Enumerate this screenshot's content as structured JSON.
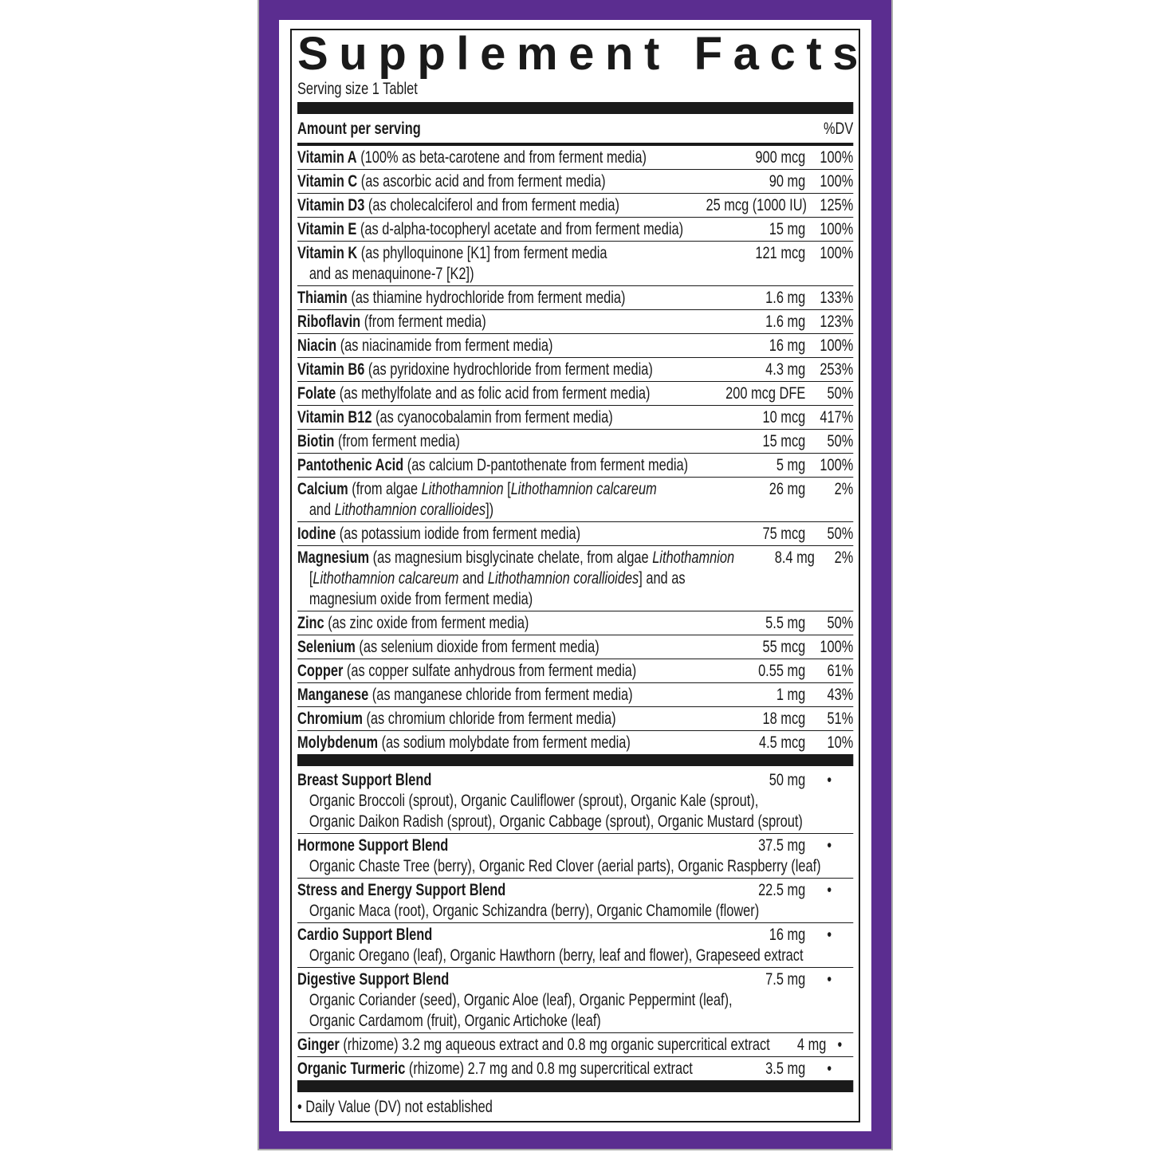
{
  "title": "Supplement Facts",
  "serving_size": "Serving size 1 Tablet",
  "amount_header": "Amount per serving",
  "dv_header": "%DV",
  "colors": {
    "frame": "#5b2d90",
    "ink": "#1a1a1a"
  },
  "nutrients": [
    {
      "name": "Vitamin A",
      "lines": [
        [
          "(100% as beta-carotene and from ferment media)"
        ]
      ],
      "amount": "900 mcg",
      "dv": "100%"
    },
    {
      "name": "Vitamin C",
      "lines": [
        [
          "(as ascorbic acid and from ferment media)"
        ]
      ],
      "amount": "90 mg",
      "dv": "100%"
    },
    {
      "name": "Vitamin D3",
      "lines": [
        [
          "(as cholecalciferol and from ferment media)"
        ]
      ],
      "amount": "25 mcg (1000 IU)",
      "dv": "125%"
    },
    {
      "name": "Vitamin E",
      "lines": [
        [
          "(as d-alpha-tocopheryl acetate and from ferment media)"
        ]
      ],
      "amount": "15 mg",
      "dv": "100%"
    },
    {
      "name": "Vitamin K",
      "lines": [
        [
          "(as phylloquinone [K1] from ferment media"
        ],
        [
          "and as menaquinone-7 [K2])"
        ]
      ],
      "amount": "121 mcg",
      "dv": "100%"
    },
    {
      "name": "Thiamin",
      "lines": [
        [
          "(as thiamine hydrochloride from ferment media)"
        ]
      ],
      "amount": "1.6 mg",
      "dv": "133%"
    },
    {
      "name": "Riboflavin",
      "lines": [
        [
          "(from ferment media)"
        ]
      ],
      "amount": "1.6 mg",
      "dv": "123%"
    },
    {
      "name": "Niacin",
      "lines": [
        [
          "(as niacinamide from ferment media)"
        ]
      ],
      "amount": "16 mg",
      "dv": "100%"
    },
    {
      "name": "Vitamin B6",
      "lines": [
        [
          "(as pyridoxine hydrochloride from ferment media)"
        ]
      ],
      "amount": "4.3 mg",
      "dv": "253%"
    },
    {
      "name": "Folate",
      "lines": [
        [
          "(as methylfolate and as folic acid from ferment media)"
        ]
      ],
      "amount": "200 mcg DFE",
      "dv": "50%"
    },
    {
      "name": "Vitamin B12",
      "lines": [
        [
          "(as cyanocobalamin from ferment media)"
        ]
      ],
      "amount": "10 mcg",
      "dv": "417%"
    },
    {
      "name": "Biotin",
      "lines": [
        [
          "(from ferment media)"
        ]
      ],
      "amount": "15 mcg",
      "dv": "50%"
    },
    {
      "name": "Pantothenic Acid",
      "lines": [
        [
          "(as calcium D-pantothenate from ferment media)"
        ]
      ],
      "amount": "5 mg",
      "dv": "100%"
    },
    {
      "name": "Calcium",
      "lines": [
        [
          "(from algae ",
          {
            "i": "Lithothamnion"
          },
          " [",
          {
            "i": "Lithothamnion calcareum"
          }
        ],
        [
          "and ",
          {
            "i": "Lithothamnion corallioides"
          },
          "])"
        ]
      ],
      "amount": "26 mg",
      "dv": "2%"
    },
    {
      "name": "Iodine",
      "lines": [
        [
          "(as potassium iodide from ferment media)"
        ]
      ],
      "amount": "75 mcg",
      "dv": "50%"
    },
    {
      "name": "Magnesium",
      "lines": [
        [
          "(as magnesium bisglycinate chelate, from algae ",
          {
            "i": "Lithothamnion"
          }
        ],
        [
          "[",
          {
            "i": "Lithothamnion calcareum"
          },
          " and ",
          {
            "i": "Lithothamnion corallioides"
          },
          "] and as"
        ],
        [
          "magnesium oxide from ferment media)"
        ]
      ],
      "amount": "8.4 mg",
      "dv": "2%"
    },
    {
      "name": "Zinc",
      "lines": [
        [
          "(as zinc oxide from ferment media)"
        ]
      ],
      "amount": "5.5 mg",
      "dv": "50%"
    },
    {
      "name": "Selenium",
      "lines": [
        [
          "(as selenium dioxide from ferment media)"
        ]
      ],
      "amount": "55 mcg",
      "dv": "100%"
    },
    {
      "name": "Copper",
      "lines": [
        [
          "(as copper sulfate anhydrous from ferment media)"
        ]
      ],
      "amount": "0.55 mg",
      "dv": "61%"
    },
    {
      "name": "Manganese",
      "lines": [
        [
          "(as manganese chloride from ferment media)"
        ]
      ],
      "amount": "1 mg",
      "dv": "43%"
    },
    {
      "name": "Chromium",
      "lines": [
        [
          "(as chromium chloride from ferment media)"
        ]
      ],
      "amount": "18 mcg",
      "dv": "51%"
    },
    {
      "name": "Molybdenum",
      "lines": [
        [
          "(as sodium molybdate from ferment media)"
        ]
      ],
      "amount": "4.5 mcg",
      "dv": "10%"
    }
  ],
  "blends": [
    {
      "name": "Breast Support Blend",
      "desc": "",
      "amount": "50 mg",
      "dv": "•",
      "ingredients": [
        "Organic Broccoli (sprout), Organic Cauliflower (sprout), Organic Kale (sprout),",
        "Organic Daikon Radish (sprout), Organic Cabbage (sprout), Organic Mustard (sprout)"
      ]
    },
    {
      "name": "Hormone Support Blend",
      "desc": "",
      "amount": "37.5 mg",
      "dv": "•",
      "ingredients": [
        "Organic Chaste Tree (berry), Organic Red Clover (aerial parts), Organic Raspberry (leaf)"
      ]
    },
    {
      "name": "Stress and Energy Support Blend",
      "desc": "",
      "amount": "22.5 mg",
      "dv": "•",
      "ingredients": [
        "Organic Maca (root), Organic Schizandra (berry), Organic Chamomile (flower)"
      ]
    },
    {
      "name": "Cardio Support Blend",
      "desc": "",
      "amount": "16 mg",
      "dv": "•",
      "ingredients": [
        "Organic Oregano (leaf), Organic Hawthorn (berry, leaf and flower), Grapeseed extract"
      ]
    },
    {
      "name": "Digestive Support Blend",
      "desc": "",
      "amount": "7.5 mg",
      "dv": "•",
      "ingredients": [
        "Organic Coriander (seed), Organic Aloe (leaf), Organic Peppermint (leaf),",
        "Organic Cardamom (fruit), Organic Artichoke (leaf)"
      ]
    },
    {
      "name": "Ginger",
      "desc": "(rhizome) 3.2 mg aqueous extract and 0.8 mg organic supercritical extract",
      "amount": "4 mg",
      "dv": "•",
      "ingredients": []
    },
    {
      "name": "Organic Turmeric",
      "desc": "(rhizome) 2.7 mg and 0.8 mg supercritical extract",
      "amount": "3.5 mg",
      "dv": "•",
      "ingredients": []
    }
  ],
  "footnote": "• Daily Value (DV) not established"
}
